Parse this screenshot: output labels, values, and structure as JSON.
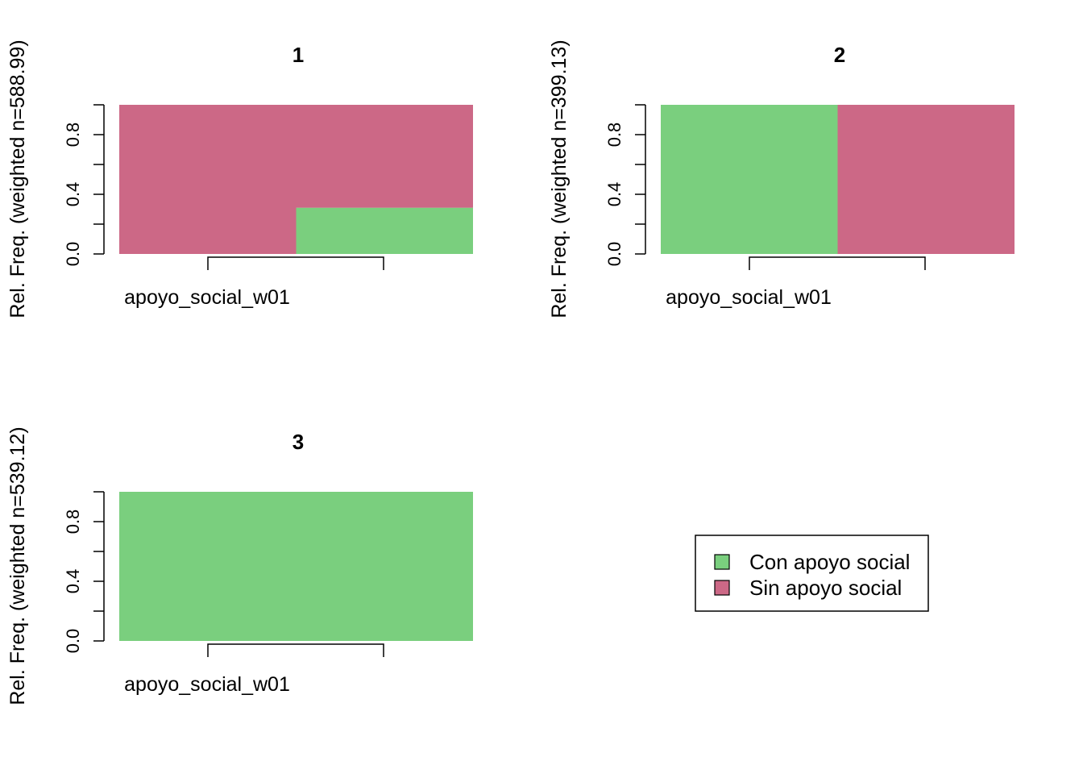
{
  "chart_data": {
    "type": "bar",
    "stacking": "spineplot",
    "legend": {
      "placement": "bottom-right",
      "entries": [
        {
          "label": "Con apoyo social",
          "color": "#7ACF7E"
        },
        {
          "label": "Sin apoyo social",
          "color": "#CC6886"
        }
      ]
    },
    "panels": [
      {
        "title": "1",
        "ylabel": "Rel. Freq. (weighted n=588.99)",
        "xlabel": "apoyo_social_w01",
        "ylim": [
          0,
          1
        ],
        "yticks": [
          "0.0",
          "0.4",
          "0.8"
        ],
        "segments": [
          {
            "x0": 0.0,
            "x1": 0.5,
            "y0": 0.0,
            "y1": 1.0,
            "series": "Sin apoyo social"
          },
          {
            "x0": 0.5,
            "x1": 1.0,
            "y0": 0.0,
            "y1": 0.31,
            "series": "Con apoyo social"
          },
          {
            "x0": 0.5,
            "x1": 1.0,
            "y0": 0.31,
            "y1": 1.0,
            "series": "Sin apoyo social"
          }
        ]
      },
      {
        "title": "2",
        "ylabel": "Rel. Freq. (weighted n=399.13)",
        "xlabel": "apoyo_social_w01",
        "ylim": [
          0,
          1
        ],
        "yticks": [
          "0.0",
          "0.4",
          "0.8"
        ],
        "segments": [
          {
            "x0": 0.0,
            "x1": 0.5,
            "y0": 0.0,
            "y1": 1.0,
            "series": "Con apoyo social"
          },
          {
            "x0": 0.5,
            "x1": 1.0,
            "y0": 0.0,
            "y1": 1.0,
            "series": "Sin apoyo social"
          }
        ]
      },
      {
        "title": "3",
        "ylabel": "Rel. Freq. (weighted n=539.12)",
        "xlabel": "apoyo_social_w01",
        "ylim": [
          0,
          1
        ],
        "yticks": [
          "0.0",
          "0.4",
          "0.8"
        ],
        "segments": [
          {
            "x0": 0.0,
            "x1": 1.0,
            "y0": 0.0,
            "y1": 1.0,
            "series": "Con apoyo social"
          }
        ]
      }
    ]
  }
}
